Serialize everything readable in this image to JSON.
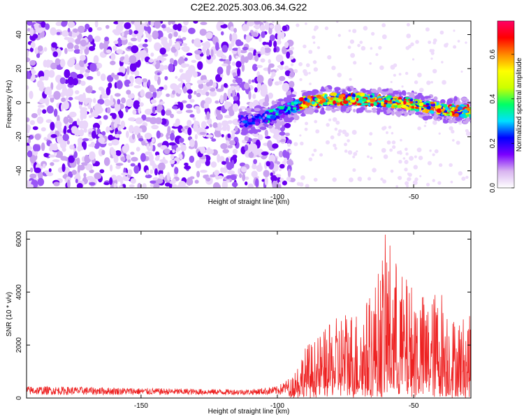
{
  "chart_data": [
    {
      "type": "heatmap",
      "title": "C2E2.2025.303.06.34.G22",
      "xlabel": "Height of straight line (km)",
      "ylabel": "Frequency (Hz)",
      "xlim": [
        -192,
        -29
      ],
      "ylim": [
        -50,
        48
      ],
      "xticks": [
        -150,
        -100,
        -50
      ],
      "yticks": [
        -40,
        -20,
        0,
        20,
        40
      ],
      "ridge": {
        "description_points_x": [
          -112,
          -105,
          -100,
          -95,
          -90,
          -80,
          -70,
          -60,
          -50,
          -40,
          -30
        ],
        "description_points_freq": [
          -11,
          -9,
          -6,
          -3,
          0,
          2,
          2,
          1,
          -1,
          -4,
          -5
        ],
        "peak_amplitude": 0.75
      },
      "noise_region_x": [
        -192,
        -100
      ],
      "colorbar": {
        "label": "Normalized spectral amplitude",
        "range": [
          0,
          0.75
        ],
        "ticks": [
          0,
          0.2,
          0.4,
          0.6
        ],
        "tick_labels": [
          "0.0",
          "0.2",
          "0.4",
          "0.6"
        ],
        "colors": [
          "#ffffff",
          "#d8b4f0",
          "#7b00ff",
          "#0000ff",
          "#00e0ff",
          "#00ff66",
          "#ccff00",
          "#ffff00",
          "#ff8800",
          "#ff0000",
          "#ff0066"
        ]
      }
    },
    {
      "type": "line",
      "xlabel": "Height of straight line (km)",
      "ylabel": "SNR (10 * v/v)",
      "xlim": [
        -192,
        -29
      ],
      "ylim": [
        0,
        6300
      ],
      "xticks": [
        -150,
        -100,
        -50
      ],
      "yticks": [
        0,
        2000,
        4000,
        6000
      ],
      "line_color": "#ee2222",
      "series": [
        {
          "name": "SNR",
          "x": [
            -192,
            -170,
            -150,
            -130,
            -110,
            -100,
            -95,
            -90,
            -85,
            -80,
            -75,
            -70,
            -65,
            -62,
            -60,
            -58,
            -55,
            -50,
            -45,
            -40,
            -35,
            -30
          ],
          "env": [
            450,
            420,
            380,
            350,
            330,
            450,
            800,
            1900,
            2300,
            2800,
            3400,
            3300,
            4100,
            5200,
            6300,
            5800,
            4700,
            4300,
            3700,
            4200,
            3000,
            3100
          ]
        }
      ]
    }
  ]
}
